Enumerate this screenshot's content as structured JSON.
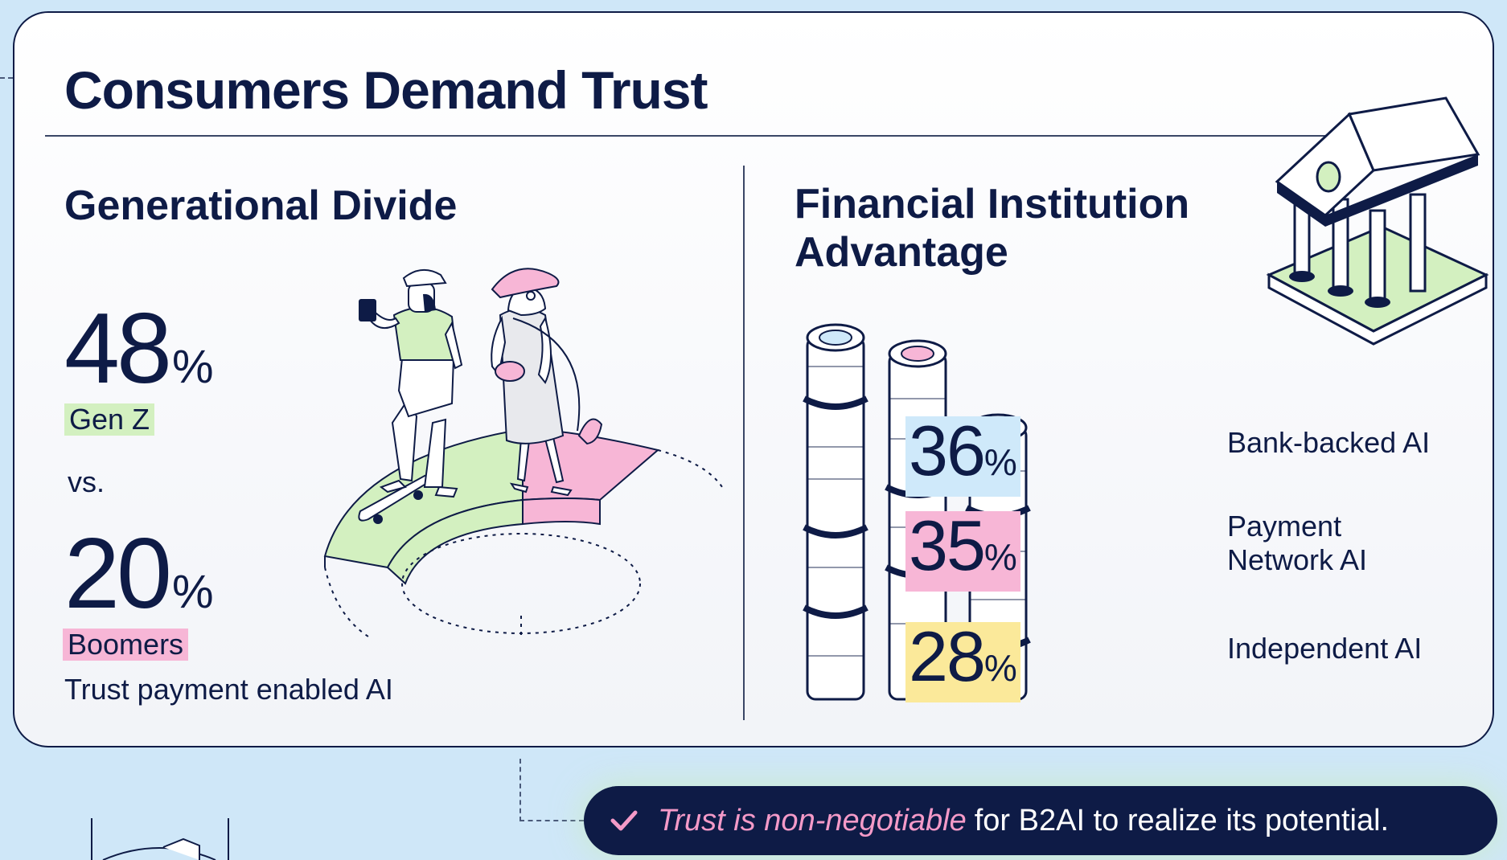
{
  "title": "Consumers Demand Trust",
  "left": {
    "heading": "Generational Divide",
    "stat1": {
      "value": "48",
      "unit": "%",
      "label": "Gen Z"
    },
    "versus": "vs.",
    "stat2": {
      "value": "20",
      "unit": "%",
      "label": "Boomers"
    },
    "caption": "Trust payment enabled AI"
  },
  "right": {
    "heading_line1": "Financial Institution",
    "heading_line2": "Advantage",
    "stats": [
      {
        "value": "36",
        "unit": "%",
        "label_line1": "Bank-backed AI",
        "label_line2": "",
        "color": "#cfe9fa"
      },
      {
        "value": "35",
        "unit": "%",
        "label_line1": "Payment",
        "label_line2": "Network AI",
        "color": "#f7b6d6"
      },
      {
        "value": "28",
        "unit": "%",
        "label_line1": "Independent AI",
        "label_line2": "",
        "color": "#fbe99a"
      }
    ]
  },
  "banner": {
    "emphasis": "Trust is non-negotiable",
    "rest": "for B2AI to realize its potential."
  },
  "colors": {
    "navy": "#0e1b46",
    "green": "#d3f0c0",
    "pink": "#f7b6d6",
    "blue": "#cfe9fa",
    "yellow": "#fbe99a",
    "background": "#cfe7f8"
  },
  "icons": [
    "checkmark-icon",
    "bank-building-icon",
    "coin-stack-icon",
    "dollar-icon",
    "skateboarder-illustration",
    "older-woman-illustration"
  ]
}
